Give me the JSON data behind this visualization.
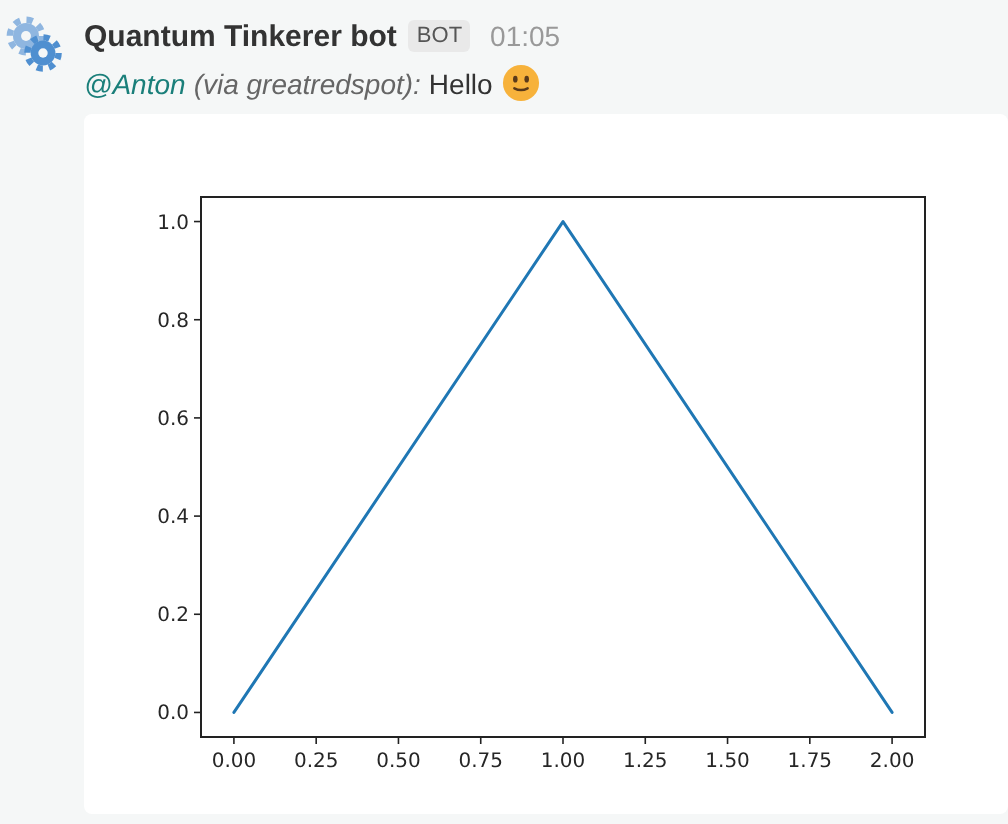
{
  "chart_data": {
    "type": "line",
    "annotations": [
      "Quantum Tinkerer bot",
      "BOT",
      "01:05",
      "@Anton",
      "(via greatredspot):",
      "Hello"
    ],
    "x": [
      0,
      1,
      2
    ],
    "series": [
      {
        "color": "#1f77b4",
        "values": [
          0,
          1,
          0
        ]
      }
    ],
    "xlim": [
      -0.1,
      2.1
    ],
    "ylim": [
      -0.05,
      1.05
    ],
    "xticks": [
      {
        "value": 0,
        "label": "0.00"
      },
      {
        "value": 0.25,
        "label": "0.25"
      },
      {
        "value": 0.5,
        "label": "0.50"
      },
      {
        "value": 0.75,
        "label": "0.75"
      },
      {
        "value": 1,
        "label": "1.00"
      },
      {
        "value": 1.25,
        "label": "1.25"
      },
      {
        "value": 1.5,
        "label": "1.50"
      },
      {
        "value": 1.75,
        "label": "1.75"
      },
      {
        "value": 2,
        "label": "2.00"
      }
    ],
    "yticks": [
      {
        "value": 0,
        "label": "0.0"
      },
      {
        "value": 0.2,
        "label": "0.2"
      },
      {
        "value": 0.4,
        "label": "0.4"
      },
      {
        "value": 0.6,
        "label": "0.6"
      },
      {
        "value": 0.8,
        "label": "0.8"
      },
      {
        "value": 1,
        "label": "1.0"
      }
    ]
  }
}
